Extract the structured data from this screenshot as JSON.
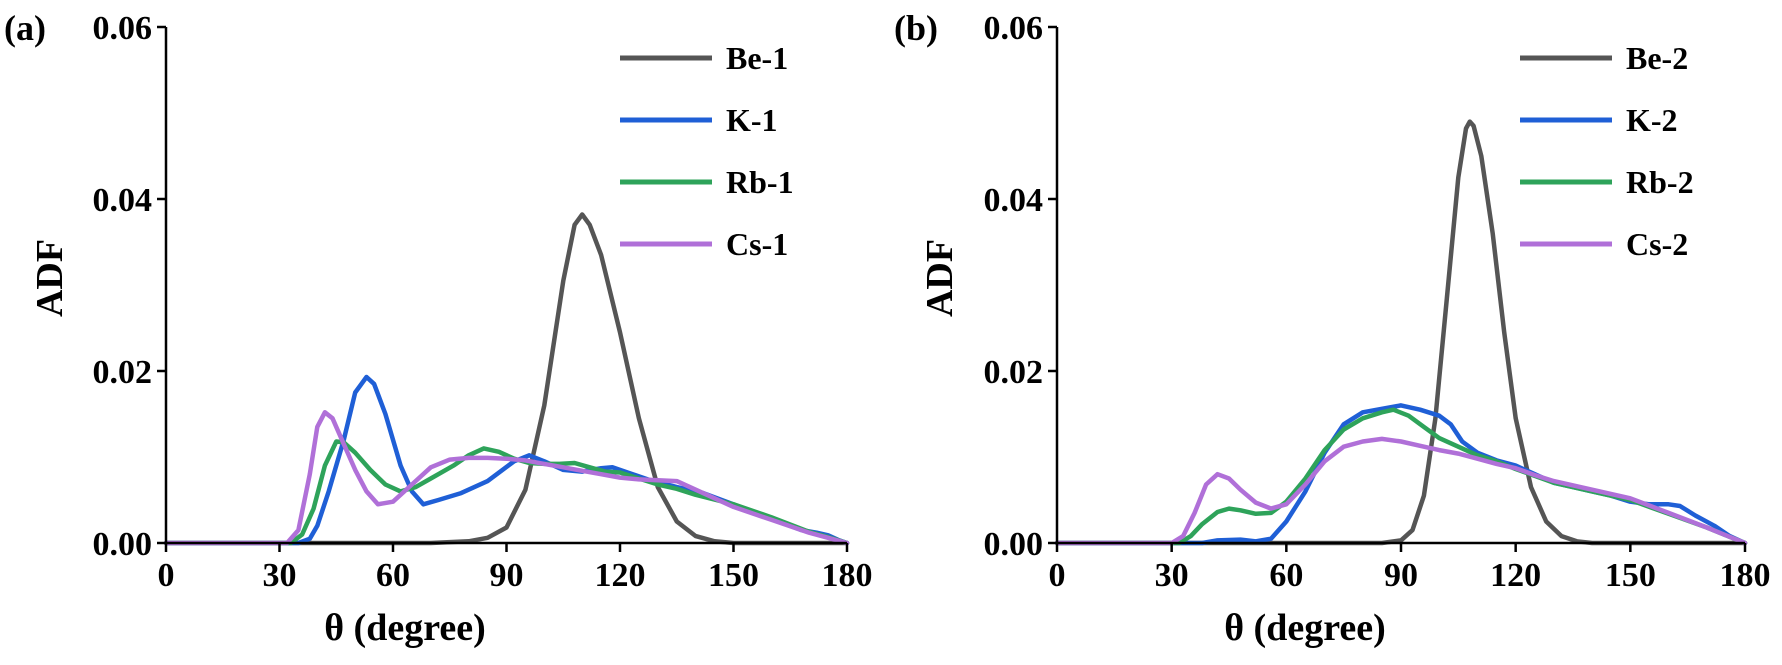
{
  "chart_data": [
    {
      "type": "line",
      "panel_label": "(a)",
      "xlabel": "θ (degree)",
      "ylabel": "ADF",
      "xlim": [
        0,
        180
      ],
      "ylim": [
        0,
        0.06
      ],
      "xticks": [
        0,
        30,
        60,
        90,
        120,
        150,
        180
      ],
      "yticks": [
        0.0,
        0.02,
        0.04,
        0.06
      ],
      "xtick_labels": [
        "0",
        "30",
        "60",
        "90",
        "120",
        "150",
        "180"
      ],
      "ytick_labels": [
        "0.00",
        "0.02",
        "0.04",
        "0.06"
      ],
      "legend_position": "top-right",
      "grid": false,
      "series": [
        {
          "name": "Be-1",
          "color": "#555555",
          "points": [
            [
              0,
              0
            ],
            [
              70,
              0
            ],
            [
              80,
              0.0002
            ],
            [
              85,
              0.0006
            ],
            [
              90,
              0.0018
            ],
            [
              95,
              0.0062
            ],
            [
              100,
              0.016
            ],
            [
              105,
              0.0305
            ],
            [
              108,
              0.037
            ],
            [
              110,
              0.0382
            ],
            [
              112,
              0.037
            ],
            [
              115,
              0.0335
            ],
            [
              120,
              0.0245
            ],
            [
              125,
              0.0145
            ],
            [
              130,
              0.0065
            ],
            [
              135,
              0.0025
            ],
            [
              140,
              0.0008
            ],
            [
              145,
              0.0002
            ],
            [
              150,
              0
            ],
            [
              180,
              0
            ]
          ]
        },
        {
          "name": "K-1",
          "color": "#1f5fd6",
          "points": [
            [
              0,
              0
            ],
            [
              35,
              0
            ],
            [
              38,
              0.0005
            ],
            [
              40,
              0.002
            ],
            [
              43,
              0.006
            ],
            [
              47,
              0.012
            ],
            [
              50,
              0.0175
            ],
            [
              53,
              0.0193
            ],
            [
              55,
              0.0185
            ],
            [
              58,
              0.015
            ],
            [
              62,
              0.009
            ],
            [
              65,
              0.006
            ],
            [
              68,
              0.0045
            ],
            [
              72,
              0.005
            ],
            [
              78,
              0.0058
            ],
            [
              85,
              0.0072
            ],
            [
              92,
              0.0095
            ],
            [
              96,
              0.0102
            ],
            [
              100,
              0.0095
            ],
            [
              105,
              0.0085
            ],
            [
              110,
              0.0083
            ],
            [
              115,
              0.0087
            ],
            [
              118,
              0.0088
            ],
            [
              122,
              0.0082
            ],
            [
              128,
              0.0073
            ],
            [
              135,
              0.0065
            ],
            [
              142,
              0.0058
            ],
            [
              150,
              0.0045
            ],
            [
              160,
              0.0028
            ],
            [
              168,
              0.0015
            ],
            [
              172,
              0.0012
            ],
            [
              175,
              0.0009
            ],
            [
              178,
              0.0003
            ],
            [
              180,
              0
            ]
          ]
        },
        {
          "name": "Rb-1",
          "color": "#2ea35a",
          "points": [
            [
              0,
              0
            ],
            [
              33,
              0
            ],
            [
              36,
              0.001
            ],
            [
              39,
              0.004
            ],
            [
              42,
              0.009
            ],
            [
              45,
              0.0118
            ],
            [
              47,
              0.0117
            ],
            [
              50,
              0.0105
            ],
            [
              54,
              0.0085
            ],
            [
              58,
              0.0068
            ],
            [
              62,
              0.006
            ],
            [
              66,
              0.0065
            ],
            [
              70,
              0.0075
            ],
            [
              76,
              0.009
            ],
            [
              80,
              0.0102
            ],
            [
              84,
              0.011
            ],
            [
              88,
              0.0106
            ],
            [
              92,
              0.0098
            ],
            [
              96,
              0.0093
            ],
            [
              100,
              0.0092
            ],
            [
              104,
              0.0092
            ],
            [
              108,
              0.0093
            ],
            [
              112,
              0.0088
            ],
            [
              116,
              0.0083
            ],
            [
              120,
              0.0082
            ],
            [
              125,
              0.0075
            ],
            [
              130,
              0.0068
            ],
            [
              135,
              0.0063
            ],
            [
              140,
              0.0056
            ],
            [
              150,
              0.0045
            ],
            [
              160,
              0.003
            ],
            [
              170,
              0.0013
            ],
            [
              175,
              0.0007
            ],
            [
              180,
              0
            ]
          ]
        },
        {
          "name": "Cs-1",
          "color": "#b070d8",
          "points": [
            [
              0,
              0
            ],
            [
              32,
              0
            ],
            [
              35,
              0.0015
            ],
            [
              38,
              0.008
            ],
            [
              40,
              0.0135
            ],
            [
              42,
              0.0152
            ],
            [
              44,
              0.0145
            ],
            [
              47,
              0.0115
            ],
            [
              50,
              0.0085
            ],
            [
              53,
              0.006
            ],
            [
              56,
              0.0045
            ],
            [
              60,
              0.0048
            ],
            [
              65,
              0.0068
            ],
            [
              70,
              0.0088
            ],
            [
              75,
              0.0097
            ],
            [
              80,
              0.0099
            ],
            [
              85,
              0.0099
            ],
            [
              90,
              0.0098
            ],
            [
              95,
              0.0096
            ],
            [
              100,
              0.0092
            ],
            [
              105,
              0.0088
            ],
            [
              110,
              0.0084
            ],
            [
              115,
              0.008
            ],
            [
              120,
              0.0076
            ],
            [
              125,
              0.0074
            ],
            [
              130,
              0.0073
            ],
            [
              135,
              0.0072
            ],
            [
              140,
              0.0062
            ],
            [
              150,
              0.0042
            ],
            [
              160,
              0.0027
            ],
            [
              170,
              0.0012
            ],
            [
              175,
              0.0006
            ],
            [
              180,
              0
            ]
          ]
        }
      ]
    },
    {
      "type": "line",
      "panel_label": "(b)",
      "xlabel": "θ (degree)",
      "ylabel": "ADF",
      "xlim": [
        0,
        180
      ],
      "ylim": [
        0,
        0.06
      ],
      "xticks": [
        0,
        30,
        60,
        90,
        120,
        150,
        180
      ],
      "yticks": [
        0.0,
        0.02,
        0.04,
        0.06
      ],
      "xtick_labels": [
        "0",
        "30",
        "60",
        "90",
        "120",
        "150",
        "180"
      ],
      "ytick_labels": [
        "0.00",
        "0.02",
        "0.04",
        "0.06"
      ],
      "legend_position": "top-right",
      "grid": false,
      "series": [
        {
          "name": "Be-2",
          "color": "#555555",
          "points": [
            [
              0,
              0
            ],
            [
              85,
              0
            ],
            [
              90,
              0.0003
            ],
            [
              93,
              0.0015
            ],
            [
              96,
              0.0055
            ],
            [
              99,
              0.0145
            ],
            [
              102,
              0.0285
            ],
            [
              105,
              0.0425
            ],
            [
              107,
              0.0482
            ],
            [
              108,
              0.049
            ],
            [
              109,
              0.0485
            ],
            [
              111,
              0.045
            ],
            [
              114,
              0.036
            ],
            [
              117,
              0.0245
            ],
            [
              120,
              0.0145
            ],
            [
              124,
              0.0065
            ],
            [
              128,
              0.0025
            ],
            [
              132,
              0.0008
            ],
            [
              136,
              0.0002
            ],
            [
              140,
              0
            ],
            [
              180,
              0
            ]
          ]
        },
        {
          "name": "K-2",
          "color": "#1f5fd6",
          "points": [
            [
              0,
              0
            ],
            [
              38,
              0
            ],
            [
              42,
              0.0003
            ],
            [
              48,
              0.0004
            ],
            [
              52,
              0.0002
            ],
            [
              56,
              0.0005
            ],
            [
              60,
              0.0025
            ],
            [
              65,
              0.006
            ],
            [
              70,
              0.0105
            ],
            [
              75,
              0.0138
            ],
            [
              80,
              0.0152
            ],
            [
              85,
              0.0156
            ],
            [
              90,
              0.016
            ],
            [
              95,
              0.0155
            ],
            [
              100,
              0.0148
            ],
            [
              103,
              0.0138
            ],
            [
              106,
              0.0118
            ],
            [
              110,
              0.0105
            ],
            [
              115,
              0.0096
            ],
            [
              120,
              0.009
            ],
            [
              125,
              0.008
            ],
            [
              130,
              0.007
            ],
            [
              135,
              0.0065
            ],
            [
              140,
              0.006
            ],
            [
              145,
              0.0055
            ],
            [
              150,
              0.0048
            ],
            [
              155,
              0.0045
            ],
            [
              160,
              0.0045
            ],
            [
              163,
              0.0043
            ],
            [
              167,
              0.0032
            ],
            [
              172,
              0.002
            ],
            [
              176,
              0.0008
            ],
            [
              180,
              0
            ]
          ]
        },
        {
          "name": "Rb-2",
          "color": "#2ea35a",
          "points": [
            [
              0,
              0
            ],
            [
              32,
              0
            ],
            [
              35,
              0.0008
            ],
            [
              38,
              0.0022
            ],
            [
              42,
              0.0036
            ],
            [
              45,
              0.004
            ],
            [
              48,
              0.0038
            ],
            [
              52,
              0.0034
            ],
            [
              56,
              0.0035
            ],
            [
              60,
              0.0048
            ],
            [
              65,
              0.0075
            ],
            [
              70,
              0.0108
            ],
            [
              75,
              0.0132
            ],
            [
              80,
              0.0145
            ],
            [
              85,
              0.0152
            ],
            [
              88,
              0.0155
            ],
            [
              92,
              0.0148
            ],
            [
              96,
              0.0135
            ],
            [
              100,
              0.0122
            ],
            [
              105,
              0.0112
            ],
            [
              110,
              0.0102
            ],
            [
              115,
              0.0095
            ],
            [
              120,
              0.0086
            ],
            [
              125,
              0.0078
            ],
            [
              130,
              0.007
            ],
            [
              140,
              0.006
            ],
            [
              150,
              0.005
            ],
            [
              160,
              0.0034
            ],
            [
              170,
              0.0018
            ],
            [
              175,
              0.0009
            ],
            [
              180,
              0
            ]
          ]
        },
        {
          "name": "Cs-2",
          "color": "#b070d8",
          "points": [
            [
              0,
              0
            ],
            [
              30,
              0
            ],
            [
              33,
              0.0008
            ],
            [
              36,
              0.0035
            ],
            [
              39,
              0.0068
            ],
            [
              42,
              0.008
            ],
            [
              45,
              0.0075
            ],
            [
              48,
              0.0062
            ],
            [
              52,
              0.0047
            ],
            [
              56,
              0.004
            ],
            [
              60,
              0.0045
            ],
            [
              65,
              0.0068
            ],
            [
              70,
              0.0095
            ],
            [
              75,
              0.0112
            ],
            [
              80,
              0.0118
            ],
            [
              85,
              0.0121
            ],
            [
              90,
              0.0118
            ],
            [
              95,
              0.0113
            ],
            [
              100,
              0.0108
            ],
            [
              105,
              0.0104
            ],
            [
              110,
              0.0098
            ],
            [
              115,
              0.0092
            ],
            [
              120,
              0.0087
            ],
            [
              125,
              0.0079
            ],
            [
              130,
              0.0072
            ],
            [
              140,
              0.0062
            ],
            [
              150,
              0.0052
            ],
            [
              160,
              0.0035
            ],
            [
              170,
              0.0018
            ],
            [
              175,
              0.0009
            ],
            [
              180,
              0
            ]
          ]
        }
      ]
    }
  ]
}
